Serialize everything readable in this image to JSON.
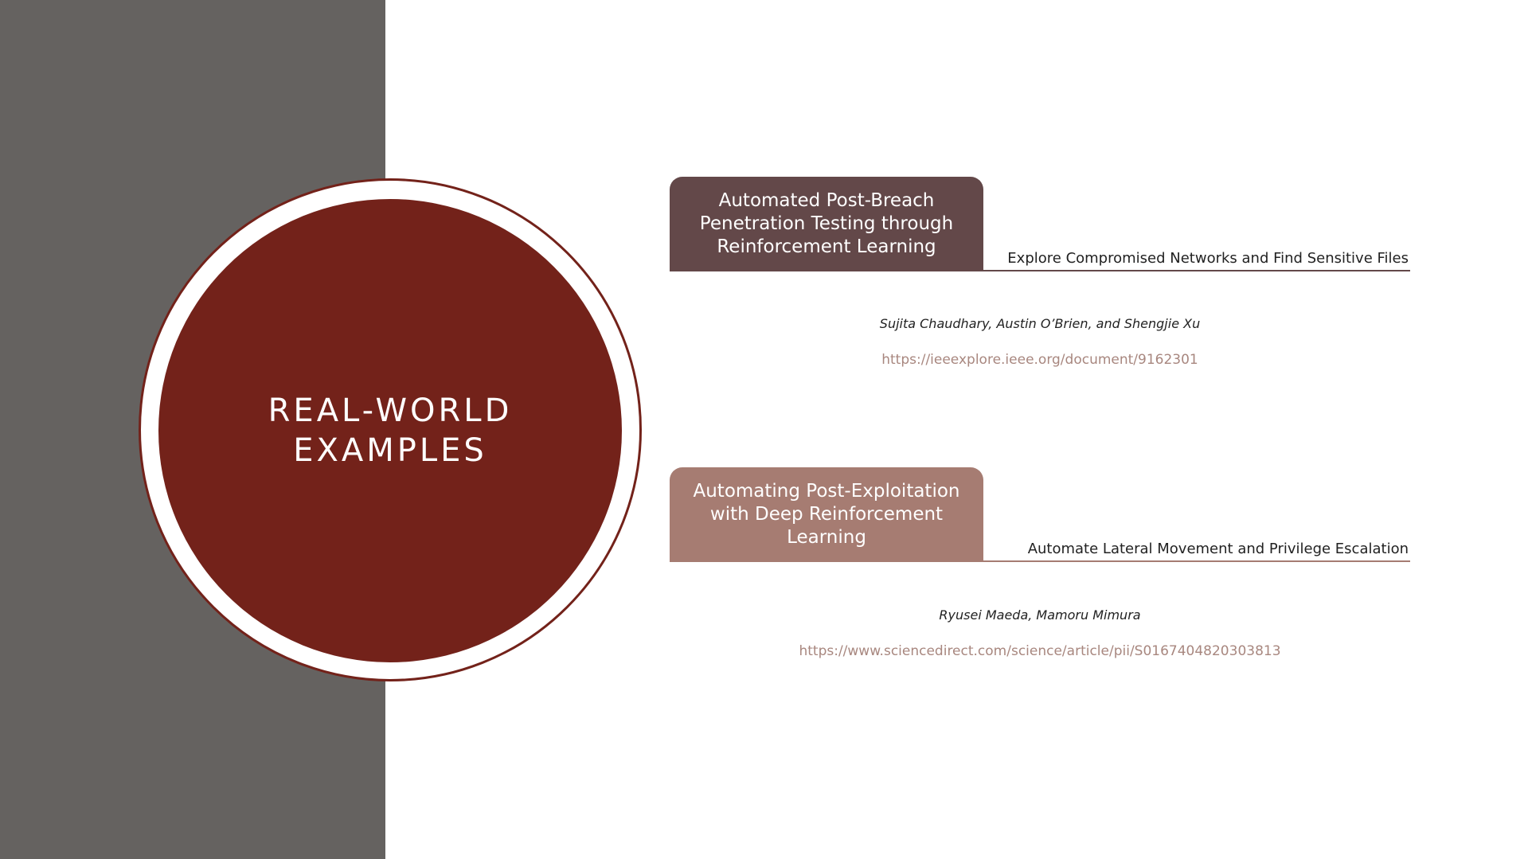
{
  "slide": {
    "section_title": "REAL-WORLD EXAMPLES",
    "colors": {
      "left_panel": "#656260",
      "circle": "#73221a",
      "card_1": "#634849",
      "card_2": "#a67c72",
      "link": "#a8877f"
    }
  },
  "examples": [
    {
      "title": "Automated Post-Breach Penetration Testing through Reinforcement Learning",
      "subtitle": "Explore Compromised Networks and Find Sensitive Files",
      "authors": "Sujita Chaudhary, Austin O’Brien, and Shengjie Xu",
      "url": "https://ieeexplore.ieee.org/document/9162301"
    },
    {
      "title": "Automating Post-Exploitation with Deep Reinforcement Learning",
      "subtitle": "Automate Lateral Movement and Privilege Escalation",
      "authors": "Ryusei Maeda, Mamoru Mimura",
      "url": "https://www.sciencedirect.com/science/article/pii/S0167404820303813"
    }
  ]
}
